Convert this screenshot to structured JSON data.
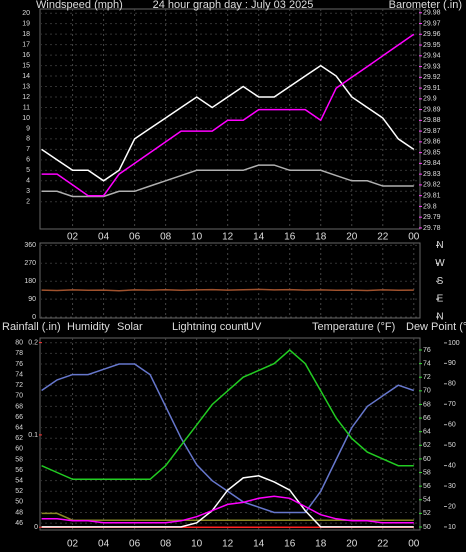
{
  "chart_data": [
    {
      "type": "line",
      "title": "24 hour graph day : July 03 2025",
      "ylabel": "Windspeed (mph)",
      "y2label": "Barometer (.in)",
      "x": [
        0,
        1,
        2,
        3,
        4,
        5,
        6,
        7,
        8,
        9,
        10,
        11,
        12,
        13,
        14,
        15,
        16,
        17,
        18,
        19,
        20,
        21,
        22,
        23,
        24
      ],
      "xlim": [
        -0.1,
        24.4
      ],
      "xticks": [
        {
          "value": 2,
          "label": "02"
        },
        {
          "value": 4,
          "label": "04"
        },
        {
          "value": 6,
          "label": "06"
        },
        {
          "value": 8,
          "label": "08"
        },
        10,
        12,
        14,
        16,
        18,
        20,
        22,
        {
          "value": 24,
          "label": "00"
        }
      ],
      "ylim": [
        -0.6,
        20.4
      ],
      "yticks": [
        2,
        3,
        4,
        5,
        6,
        7,
        8,
        9,
        10,
        11,
        12,
        13,
        14,
        15,
        16,
        17,
        18,
        19,
        20
      ],
      "y2lim": [
        29.779,
        29.9835
      ],
      "y2ticks": [
        29.78,
        29.79,
        29.8,
        29.81,
        29.82,
        29.83,
        29.84,
        29.85,
        29.86,
        29.87,
        29.88,
        29.89,
        29.9,
        29.91,
        29.92,
        29.93,
        29.94,
        29.95,
        29.96,
        29.97,
        29.98
      ],
      "grid": true,
      "series": [
        {
          "color": "#ffffff",
          "values": [
            7,
            6,
            5,
            5,
            4,
            5,
            8,
            9,
            10,
            11,
            12,
            11,
            12,
            13,
            12,
            12,
            13,
            14,
            15,
            14,
            12,
            11,
            10,
            8,
            7
          ]
        },
        {
          "color": "#b0b0b0",
          "values": [
            3,
            3,
            2.5,
            2.5,
            2.5,
            3,
            3,
            3.5,
            4,
            4.5,
            5,
            5,
            5,
            5,
            5.5,
            5.5,
            5,
            5,
            5,
            4.5,
            4,
            4,
            3.5,
            3.5,
            3.5
          ]
        },
        {
          "color": "#ff00ff",
          "axis": "y2",
          "values": [
            29.83,
            29.83,
            29.82,
            29.81,
            29.81,
            29.83,
            29.84,
            29.85,
            29.86,
            29.87,
            29.87,
            29.87,
            29.88,
            29.88,
            29.89,
            29.89,
            29.89,
            29.89,
            29.88,
            29.91,
            29.92,
            29.93,
            29.94,
            29.95,
            29.96
          ]
        }
      ]
    },
    {
      "type": "line",
      "x": [
        0,
        1,
        2,
        3,
        4,
        5,
        6,
        7,
        8,
        9,
        10,
        11,
        12,
        13,
        14,
        15,
        16,
        17,
        18,
        19,
        20,
        21,
        22,
        23,
        24
      ],
      "xlim": [
        -0.1,
        24.4
      ],
      "xticks": [
        {
          "value": 2,
          "label": "02"
        },
        {
          "value": 4,
          "label": "04"
        },
        {
          "value": 6,
          "label": "06"
        },
        {
          "value": 8,
          "label": "08"
        },
        10,
        12,
        14,
        16,
        18,
        20,
        22,
        {
          "value": 24,
          "label": "00"
        }
      ],
      "ylim": [
        -5,
        372
      ],
      "yticks": [
        0,
        90,
        180,
        270,
        360
      ],
      "y2lim": [
        -5,
        372
      ],
      "y2ticks": [
        {
          "value": 360,
          "label": "N"
        },
        {
          "value": 270,
          "label": "W"
        },
        {
          "value": 180,
          "label": "S"
        },
        {
          "value": 90,
          "label": "E"
        },
        {
          "value": 0,
          "label": "N"
        }
      ],
      "grid": true,
      "series": [
        {
          "color": "#a0522d",
          "values": [
            135,
            133,
            136,
            134,
            135,
            132,
            136,
            135,
            137,
            134,
            136,
            138,
            135,
            137,
            139,
            136,
            138,
            135,
            136,
            134,
            135,
            133,
            136,
            134,
            135
          ]
        }
      ]
    },
    {
      "type": "line",
      "axis_titles": [
        "Rainfall (.in)",
        "Humidity",
        "Solar",
        "Lightning count",
        "UV",
        "Temperature (°F)",
        "Dew Point (°F)"
      ],
      "x": [
        0,
        1,
        2,
        3,
        4,
        5,
        6,
        7,
        8,
        9,
        10,
        11,
        12,
        13,
        14,
        15,
        16,
        17,
        18,
        19,
        20,
        21,
        22,
        23,
        24
      ],
      "xlim": [
        -0.1,
        24.4
      ],
      "xticks": [
        {
          "value": 2,
          "label": "02"
        },
        {
          "value": 4,
          "label": "04"
        },
        {
          "value": 6,
          "label": "06"
        },
        {
          "value": 8,
          "label": "08"
        },
        10,
        12,
        14,
        16,
        18,
        20,
        22,
        {
          "value": 24,
          "label": "00"
        }
      ],
      "ylim": [
        44.7,
        80.9
      ],
      "yticks": [
        46,
        48,
        50,
        52,
        54,
        56,
        58,
        60,
        62,
        64,
        66,
        68,
        70,
        72,
        74,
        76,
        78,
        80
      ],
      "y2lim": [
        49.56,
        77.76
      ],
      "y2ticks": [
        50,
        52,
        54,
        56,
        58,
        60,
        62,
        64,
        66,
        68,
        70,
        72,
        74,
        76
      ],
      "y3lim": [
        -0.003,
        0.205
      ],
      "y3ticks": [
        0,
        0.1,
        0.2
      ],
      "y4lim": [
        8.5,
        102.4
      ],
      "y4ticks": [
        10,
        20,
        30,
        40,
        50,
        60,
        70,
        80,
        90,
        100
      ],
      "grid": true,
      "series": [
        {
          "color": "#ff2222",
          "axis": "y3",
          "values": [
            0,
            0,
            0,
            0,
            0,
            0,
            0,
            0,
            0,
            0,
            0,
            0,
            0,
            0,
            0,
            0,
            0,
            0,
            0,
            0,
            0,
            0,
            0,
            0,
            0
          ]
        },
        {
          "color": "#6677cc",
          "values": [
            71,
            73,
            74,
            74,
            75,
            76,
            76,
            74,
            68,
            62,
            57,
            54,
            52,
            50,
            49,
            48,
            48,
            48,
            52,
            58,
            64,
            68,
            70,
            72,
            71
          ]
        },
        {
          "color": "#22cc22",
          "axis": "y2",
          "values": [
            59,
            58,
            57,
            57,
            57,
            57,
            57,
            57,
            59,
            62,
            65,
            68,
            70,
            72,
            73,
            74,
            76,
            74,
            70,
            66,
            63,
            61,
            60,
            59,
            59
          ]
        },
        {
          "color": "#888822",
          "axis": "y2",
          "values": [
            52,
            52,
            51,
            51,
            51,
            51,
            51,
            51,
            51,
            51,
            51,
            51,
            51,
            51,
            51,
            51,
            51,
            51,
            51,
            51,
            51,
            51,
            51,
            51,
            51
          ]
        },
        {
          "color": "#ffffff",
          "axis": "y4",
          "values": [
            10,
            10,
            10,
            10,
            10,
            10,
            10,
            10,
            10,
            10,
            12,
            18,
            28,
            34,
            35,
            32,
            28,
            18,
            10,
            10,
            10,
            10,
            10,
            10,
            10
          ]
        },
        {
          "color": "#ff00ff",
          "axis": "y4",
          "values": [
            14,
            14,
            13,
            13,
            12,
            12,
            12,
            12,
            12,
            13,
            15,
            18,
            21,
            22,
            24,
            25,
            24,
            20,
            16,
            14,
            13,
            13,
            12,
            12,
            12
          ]
        }
      ]
    }
  ]
}
